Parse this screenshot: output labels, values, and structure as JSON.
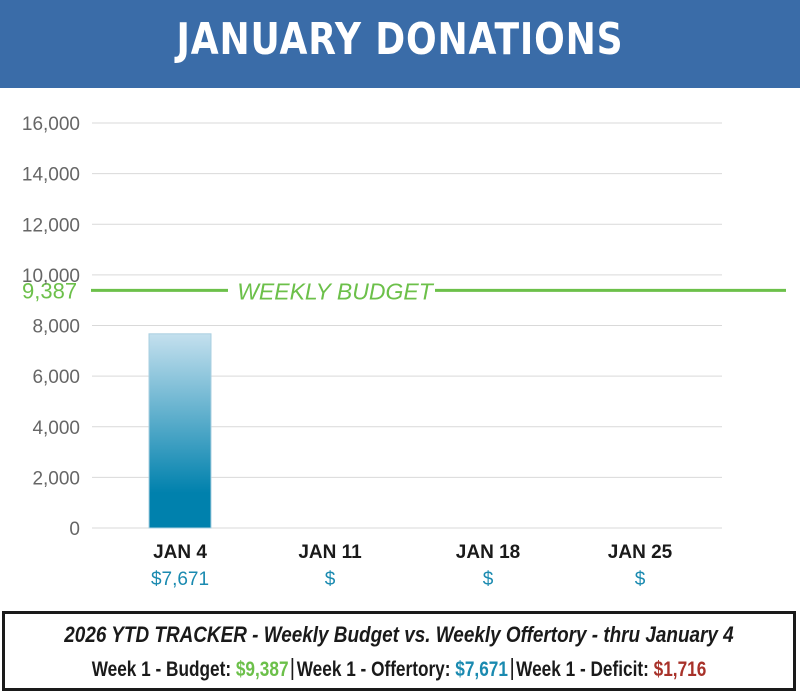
{
  "header": {
    "title": "JANUARY DONATIONS"
  },
  "chart_data": {
    "type": "bar",
    "categories": [
      "JAN 4",
      "JAN 11",
      "JAN 18",
      "JAN 25"
    ],
    "values": [
      7671,
      null,
      null,
      null
    ],
    "value_labels": [
      "$7,671",
      "$",
      "$",
      "$"
    ],
    "ylim": [
      0,
      16000
    ],
    "yticks": [
      0,
      2000,
      4000,
      6000,
      8000,
      10000,
      12000,
      14000,
      16000
    ],
    "ytick_labels": [
      "0",
      "2,000",
      "4,000",
      "6,000",
      "8,000",
      "10,000",
      "12,000",
      "14,000",
      "16,000"
    ],
    "grid": true,
    "reference_line": {
      "value": 9387,
      "value_label": "9,387",
      "label": "WEEKLY BUDGET",
      "color": "#6cc04a"
    },
    "colors": {
      "bar_top": "#c4e0ee",
      "bar_bottom": "#0081ad",
      "value_label": "#1a8ab0",
      "tick_label": "#666666",
      "grid": "#d9d9d9"
    }
  },
  "tracker": {
    "title": "2026 YTD TRACKER  -  Weekly Budget  vs. Weekly Offertory  -  thru January 4",
    "budget_label": "Week 1 - Budget:",
    "budget_value": "$9,387",
    "offertory_label": "Week 1 - Offertory:",
    "offertory_value": "$7,671",
    "deficit_label": "Week 1 - Deficit:",
    "deficit_value": "$1,716"
  }
}
